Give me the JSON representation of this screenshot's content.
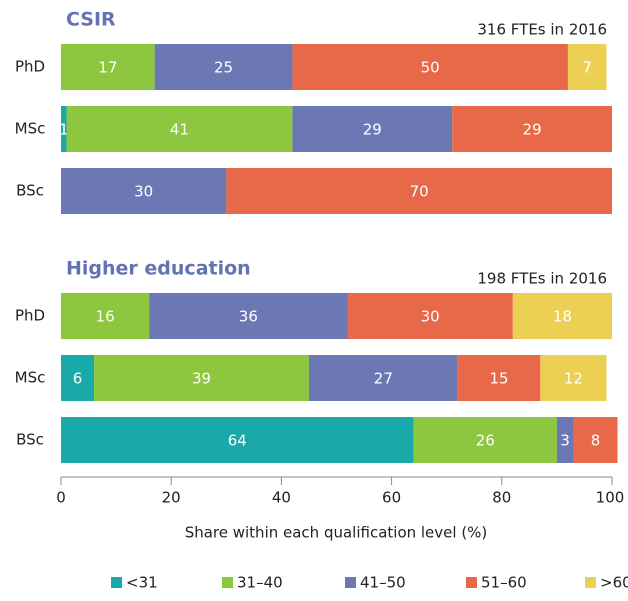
{
  "chart_data": [
    {
      "type": "bar",
      "orientation": "horizontal",
      "stacked": true,
      "title": "CSIR",
      "annotation": "316 FTEs in 2016",
      "categories": [
        "PhD",
        "MSc",
        "BSc"
      ],
      "series": [
        {
          "name": "<31",
          "color": "#1aa9a9",
          "values": [
            null,
            1,
            null
          ]
        },
        {
          "name": "31–40",
          "color": "#8dc63f",
          "values": [
            17,
            41,
            null
          ]
        },
        {
          "name": "41–50",
          "color": "#6b78b4",
          "values": [
            25,
            29,
            30
          ]
        },
        {
          "name": "51–60",
          "color": "#e8684a",
          "values": [
            50,
            29,
            70
          ]
        },
        {
          "name": ">60",
          "color": "#ecd053",
          "values": [
            7,
            null,
            null
          ]
        }
      ],
      "xlim": [
        0,
        100
      ]
    },
    {
      "type": "bar",
      "orientation": "horizontal",
      "stacked": true,
      "title": "Higher education",
      "annotation": "198 FTEs in 2016",
      "categories": [
        "PhD",
        "MSc",
        "BSc"
      ],
      "series": [
        {
          "name": "<31",
          "color": "#1aa9a9",
          "values": [
            null,
            6,
            64
          ]
        },
        {
          "name": "31–40",
          "color": "#8dc63f",
          "values": [
            16,
            39,
            26
          ]
        },
        {
          "name": "41–50",
          "color": "#6b78b4",
          "values": [
            36,
            27,
            3
          ]
        },
        {
          "name": "51–60",
          "color": "#e8684a",
          "values": [
            30,
            15,
            8
          ]
        },
        {
          "name": ">60",
          "color": "#ecd053",
          "values": [
            18,
            12,
            null
          ]
        }
      ],
      "xlim": [
        0,
        100
      ],
      "xticks": [
        0,
        20,
        40,
        60,
        80,
        100
      ],
      "xlabel": "Share within each qualification level (%)"
    }
  ]
}
